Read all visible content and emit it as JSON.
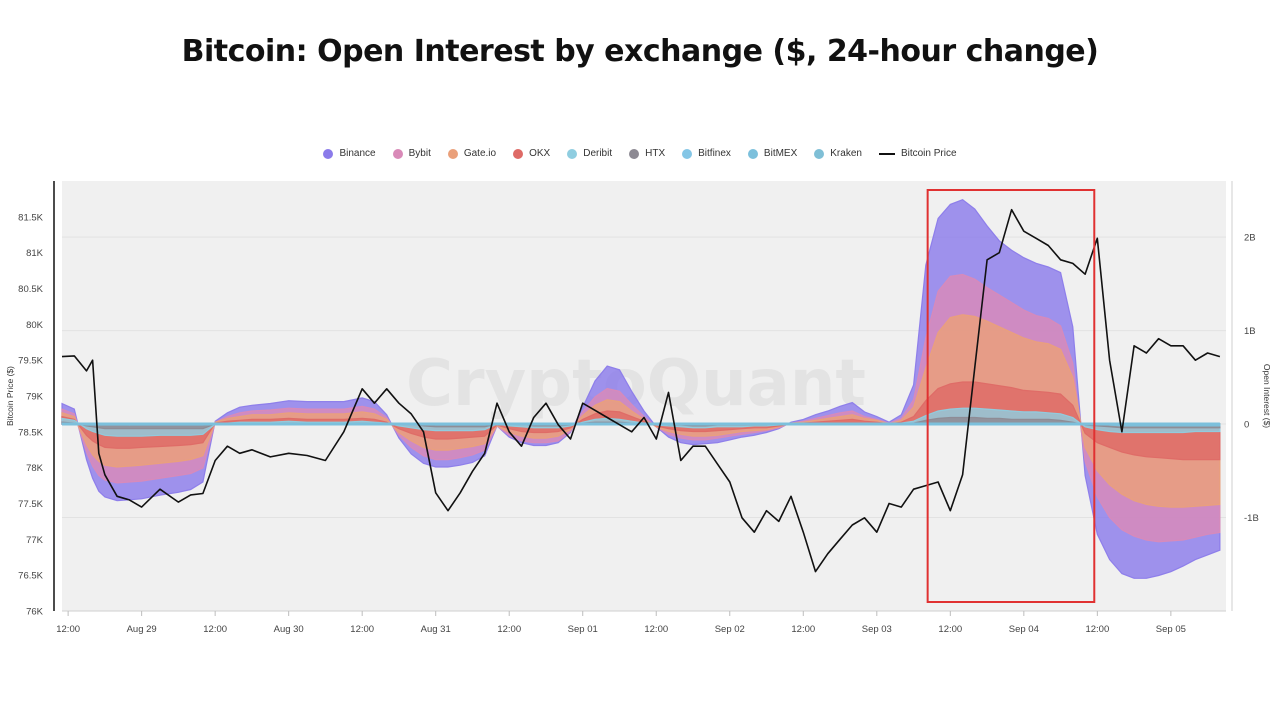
{
  "page": {
    "title": "Bitcoin: Open Interest by exchange ($, 24-hour change)",
    "watermark": "CryptoQuant"
  },
  "colors": {
    "Binance": "#8b7bea",
    "Bybit": "#d98ab8",
    "Gate.io": "#eaa07a",
    "OKX": "#de6a66",
    "Deribit": "#8fcde0",
    "HTX": "#8d8a93",
    "Bitfinex": "#84c6e6",
    "BitMEX": "#7cc0dc",
    "Kraken": "#7fbfd6",
    "Bitcoin Price": "#111111",
    "highlight": "#e03131",
    "plot_bg": "#f0f0f0"
  },
  "chart_data": {
    "type": "area",
    "title": "Bitcoin: Open Interest by exchange ($, 24-hour change)",
    "legend_position": "top",
    "grid": true,
    "x_axis": {
      "ticks": [
        "12:00",
        "Aug 29",
        "12:00",
        "Aug 30",
        "12:00",
        "Aug 31",
        "12:00",
        "Sep 01",
        "12:00",
        "Sep 02",
        "12:00",
        "Sep 03",
        "12:00",
        "Sep 04",
        "12:00",
        "Sep 05"
      ],
      "tick_hours": [
        0,
        12,
        24,
        36,
        48,
        60,
        72,
        84,
        96,
        108,
        120,
        132,
        144,
        156,
        168,
        180
      ],
      "range_hours": [
        -1,
        189
      ]
    },
    "y_left": {
      "label": "Bitcoin Price ($)",
      "ticks": [
        "81.5K",
        "81K",
        "80.5K",
        "80K",
        "79.5K",
        "79K",
        "78.5K",
        "78K",
        "77.5K",
        "77K",
        "76.5K",
        "76K"
      ],
      "tick_values": [
        81500,
        81000,
        80500,
        80000,
        79500,
        79000,
        78500,
        78000,
        77500,
        77000,
        76500,
        76000
      ],
      "range": [
        76000,
        82000
      ]
    },
    "y_right": {
      "label": "Open Interest ($)",
      "ticks": [
        "2B",
        "1B",
        "0",
        "-1B"
      ],
      "tick_values": [
        2000000000,
        1000000000,
        0,
        -1000000000
      ],
      "range": [
        -2000000000,
        2600000000
      ]
    },
    "x_hours": [
      -1,
      1,
      3,
      4,
      5,
      6,
      8,
      10,
      12,
      15,
      18,
      20,
      22,
      24,
      26,
      28,
      30,
      33,
      36,
      39,
      42,
      45,
      48,
      50,
      52,
      54,
      56,
      58,
      60,
      62,
      64,
      66,
      68,
      70,
      72,
      74,
      76,
      78,
      80,
      82,
      84,
      86,
      88,
      90,
      92,
      94,
      96,
      98,
      100,
      102,
      104,
      106,
      108,
      110,
      112,
      114,
      116,
      118,
      120,
      122,
      124,
      126,
      128,
      130,
      132,
      134,
      136,
      138,
      140,
      142,
      144,
      146,
      148,
      150,
      152,
      154,
      156,
      158,
      160,
      162,
      164,
      166,
      168,
      170,
      172,
      174,
      176,
      178,
      180,
      182,
      184,
      186,
      188
    ],
    "series": [
      {
        "name": "Kraken",
        "axis": "right",
        "values": [
          0.0,
          0.01,
          0.0,
          0.0,
          0.0,
          0.0,
          0.0,
          -0.01,
          0.0,
          0.0,
          0.0,
          0.0,
          0.0,
          0.0,
          0.0,
          0.0,
          0.0,
          0.0,
          0.0,
          0.0,
          0.0,
          0.0,
          0.0,
          0.0,
          0.0,
          0.0,
          0.0,
          0.0,
          0.0,
          0.0,
          0.0,
          0.0,
          0.0,
          0.0,
          0.0,
          0.0,
          0.0,
          0.0,
          0.0,
          0.0,
          0.0,
          0.0,
          0.0,
          0.0,
          0.0,
          0.0,
          0.0,
          0.0,
          0.0,
          0.0,
          0.0,
          0.0,
          0.0,
          0.0,
          0.0,
          0.0,
          0.0,
          0.0,
          0.0,
          0.0,
          0.0,
          0.0,
          0.0,
          0.0,
          0.0,
          0.0,
          0.0,
          0.0,
          0.0,
          0.0,
          0.0,
          0.0,
          0.0,
          0.0,
          0.0,
          0.0,
          0.0,
          0.0,
          0.0,
          0.0,
          0.0,
          0.0,
          0.0,
          -0.01,
          -0.01,
          -0.01,
          -0.01,
          -0.01,
          -0.01,
          -0.01,
          -0.01,
          -0.01,
          -0.01
        ]
      },
      {
        "name": "BitMEX",
        "axis": "right",
        "values": [
          0.01,
          0.0,
          -0.01,
          -0.01,
          -0.01,
          -0.01,
          -0.01,
          -0.01,
          -0.01,
          -0.01,
          -0.01,
          -0.01,
          -0.01,
          0.0,
          0.0,
          0.0,
          0.0,
          0.0,
          0.0,
          0.0,
          0.0,
          0.0,
          0.0,
          0.0,
          0.0,
          0.0,
          0.0,
          0.0,
          -0.01,
          -0.01,
          -0.01,
          -0.01,
          -0.01,
          0.0,
          0.0,
          0.0,
          0.0,
          0.0,
          0.0,
          0.0,
          0.0,
          0.0,
          0.0,
          0.0,
          0.0,
          0.0,
          0.0,
          0.0,
          0.0,
          0.0,
          0.0,
          0.0,
          0.0,
          0.0,
          0.0,
          0.0,
          0.0,
          0.0,
          0.0,
          0.0,
          0.0,
          0.0,
          0.0,
          0.0,
          0.0,
          0.0,
          0.0,
          0.01,
          0.01,
          0.01,
          0.01,
          0.01,
          0.01,
          0.01,
          0.01,
          0.01,
          0.01,
          0.01,
          0.01,
          0.01,
          0.01,
          0.01,
          0.0,
          -0.01,
          -0.02,
          -0.02,
          -0.02,
          -0.02,
          -0.02,
          -0.02,
          -0.02,
          -0.02,
          -0.02
        ]
      },
      {
        "name": "Bitfinex",
        "axis": "right",
        "values": [
          0.0,
          0.0,
          0.0,
          0.0,
          0.0,
          0.0,
          0.0,
          0.0,
          0.0,
          0.0,
          0.0,
          0.0,
          0.0,
          0.0,
          0.0,
          0.0,
          0.0,
          0.0,
          0.0,
          0.0,
          0.0,
          0.0,
          0.0,
          0.0,
          0.0,
          0.0,
          0.0,
          0.0,
          0.0,
          0.0,
          0.0,
          0.0,
          0.0,
          0.0,
          0.0,
          0.0,
          0.0,
          0.0,
          0.0,
          0.0,
          0.0,
          0.0,
          0.0,
          0.0,
          0.0,
          0.0,
          0.0,
          0.0,
          0.0,
          0.0,
          0.0,
          0.0,
          0.0,
          0.0,
          0.0,
          0.0,
          0.0,
          0.0,
          0.0,
          0.0,
          0.0,
          0.0,
          0.0,
          0.0,
          0.0,
          0.0,
          0.0,
          0.0,
          0.0,
          0.0,
          0.0,
          0.0,
          0.0,
          0.0,
          0.0,
          0.0,
          0.0,
          0.0,
          0.0,
          0.0,
          0.0,
          0.0,
          0.0,
          0.0,
          0.0,
          0.0,
          0.0,
          0.0,
          0.0,
          0.0,
          0.0,
          0.0,
          0.0
        ]
      },
      {
        "name": "HTX",
        "axis": "right",
        "values": [
          0.02,
          0.01,
          -0.02,
          -0.03,
          -0.04,
          -0.05,
          -0.05,
          -0.05,
          -0.05,
          -0.05,
          -0.05,
          -0.05,
          -0.05,
          0.0,
          0.0,
          0.01,
          0.01,
          0.01,
          0.01,
          0.01,
          0.01,
          0.01,
          0.01,
          0.01,
          0.0,
          0.0,
          0.0,
          -0.02,
          -0.03,
          -0.03,
          -0.03,
          -0.03,
          -0.03,
          0.0,
          0.0,
          0.0,
          -0.02,
          -0.02,
          -0.02,
          -0.01,
          0.01,
          0.02,
          0.02,
          0.02,
          0.01,
          0.0,
          0.0,
          -0.01,
          -0.01,
          -0.02,
          -0.02,
          -0.01,
          -0.01,
          -0.01,
          -0.01,
          -0.01,
          0.0,
          0.0,
          0.0,
          0.0,
          0.0,
          0.0,
          0.0,
          0.0,
          0.0,
          0.0,
          0.0,
          0.01,
          0.04,
          0.06,
          0.07,
          0.07,
          0.07,
          0.06,
          0.06,
          0.05,
          0.05,
          0.05,
          0.05,
          0.04,
          0.02,
          -0.01,
          -0.02,
          -0.03,
          -0.04,
          -0.04,
          -0.04,
          -0.04,
          -0.04,
          -0.04,
          -0.04,
          -0.04,
          -0.04
        ]
      },
      {
        "name": "Deribit",
        "axis": "right",
        "values": [
          0.06,
          0.04,
          -0.05,
          -0.08,
          -0.1,
          -0.12,
          -0.13,
          -0.13,
          -0.13,
          -0.12,
          -0.12,
          -0.12,
          -0.11,
          0.0,
          0.01,
          0.02,
          0.02,
          0.02,
          0.03,
          0.02,
          0.02,
          0.02,
          0.03,
          0.02,
          0.01,
          -0.02,
          -0.04,
          -0.06,
          -0.07,
          -0.07,
          -0.07,
          -0.07,
          -0.06,
          0.0,
          -0.02,
          -0.03,
          -0.04,
          -0.04,
          -0.04,
          -0.02,
          0.02,
          0.05,
          0.06,
          0.05,
          0.03,
          0.01,
          -0.01,
          -0.02,
          -0.03,
          -0.04,
          -0.04,
          -0.03,
          -0.03,
          -0.03,
          -0.02,
          -0.02,
          -0.01,
          0.0,
          0.0,
          0.0,
          0.0,
          0.0,
          0.01,
          0.01,
          0.01,
          0.0,
          0.01,
          0.03,
          0.09,
          0.14,
          0.16,
          0.17,
          0.17,
          0.16,
          0.15,
          0.14,
          0.13,
          0.13,
          0.12,
          0.11,
          0.07,
          -0.03,
          -0.06,
          -0.08,
          -0.09,
          -0.09,
          -0.09,
          -0.09,
          -0.09,
          -0.09,
          -0.08,
          -0.08,
          -0.08
        ]
      },
      {
        "name": "OKX",
        "axis": "right",
        "values": [
          0.08,
          0.05,
          -0.12,
          -0.18,
          -0.22,
          -0.25,
          -0.26,
          -0.26,
          -0.25,
          -0.24,
          -0.23,
          -0.22,
          -0.2,
          0.01,
          0.03,
          0.04,
          0.05,
          0.05,
          0.06,
          0.05,
          0.05,
          0.05,
          0.06,
          0.05,
          0.02,
          -0.05,
          -0.1,
          -0.14,
          -0.16,
          -0.16,
          -0.15,
          -0.14,
          -0.13,
          -0.01,
          -0.05,
          -0.08,
          -0.09,
          -0.09,
          -0.08,
          -0.04,
          0.05,
          0.11,
          0.14,
          0.13,
          0.08,
          0.03,
          -0.02,
          -0.05,
          -0.07,
          -0.08,
          -0.08,
          -0.07,
          -0.06,
          -0.05,
          -0.04,
          -0.04,
          -0.02,
          0.0,
          0.01,
          0.02,
          0.03,
          0.04,
          0.05,
          0.03,
          0.02,
          0.0,
          0.02,
          0.08,
          0.25,
          0.38,
          0.43,
          0.45,
          0.45,
          0.43,
          0.41,
          0.39,
          0.36,
          0.35,
          0.34,
          0.32,
          0.2,
          -0.1,
          -0.2,
          -0.25,
          -0.3,
          -0.33,
          -0.35,
          -0.36,
          -0.37,
          -0.38,
          -0.38,
          -0.38,
          -0.38
        ]
      },
      {
        "name": "Gate.io",
        "axis": "right",
        "values": [
          0.12,
          0.08,
          -0.22,
          -0.33,
          -0.4,
          -0.44,
          -0.46,
          -0.45,
          -0.44,
          -0.42,
          -0.4,
          -0.38,
          -0.34,
          0.02,
          0.06,
          0.08,
          0.1,
          0.1,
          0.12,
          0.11,
          0.11,
          0.11,
          0.13,
          0.11,
          0.05,
          -0.09,
          -0.18,
          -0.25,
          -0.28,
          -0.28,
          -0.26,
          -0.24,
          -0.21,
          -0.02,
          -0.09,
          -0.13,
          -0.15,
          -0.15,
          -0.13,
          -0.06,
          0.09,
          0.2,
          0.26,
          0.24,
          0.14,
          0.05,
          -0.03,
          -0.08,
          -0.11,
          -0.13,
          -0.13,
          -0.12,
          -0.1,
          -0.08,
          -0.07,
          -0.06,
          -0.03,
          0.01,
          0.02,
          0.04,
          0.06,
          0.08,
          0.1,
          0.06,
          0.04,
          0.0,
          0.04,
          0.18,
          0.6,
          0.98,
          1.14,
          1.17,
          1.15,
          1.1,
          1.04,
          0.98,
          0.92,
          0.88,
          0.86,
          0.8,
          0.5,
          -0.25,
          -0.5,
          -0.65,
          -0.75,
          -0.82,
          -0.86,
          -0.88,
          -0.89,
          -0.89,
          -0.88,
          -0.87,
          -0.86
        ]
      },
      {
        "name": "Bybit",
        "axis": "right",
        "values": [
          0.16,
          0.11,
          -0.3,
          -0.45,
          -0.55,
          -0.6,
          -0.63,
          -0.62,
          -0.61,
          -0.58,
          -0.55,
          -0.53,
          -0.47,
          0.02,
          0.08,
          0.12,
          0.14,
          0.15,
          0.17,
          0.16,
          0.16,
          0.16,
          0.19,
          0.16,
          0.07,
          -0.12,
          -0.25,
          -0.34,
          -0.38,
          -0.38,
          -0.36,
          -0.33,
          -0.28,
          -0.02,
          -0.12,
          -0.18,
          -0.2,
          -0.2,
          -0.18,
          -0.08,
          0.13,
          0.29,
          0.38,
          0.35,
          0.21,
          0.08,
          -0.03,
          -0.11,
          -0.15,
          -0.17,
          -0.17,
          -0.15,
          -0.13,
          -0.11,
          -0.09,
          -0.07,
          -0.04,
          0.01,
          0.03,
          0.06,
          0.09,
          0.12,
          0.14,
          0.08,
          0.05,
          0.01,
          0.06,
          0.26,
          0.92,
          1.42,
          1.58,
          1.6,
          1.55,
          1.46,
          1.38,
          1.3,
          1.22,
          1.16,
          1.13,
          1.05,
          0.65,
          -0.4,
          -0.78,
          -1.0,
          -1.13,
          -1.2,
          -1.24,
          -1.26,
          -1.25,
          -1.24,
          -1.21,
          -1.18,
          -1.16
        ]
      },
      {
        "name": "Binance",
        "axis": "right",
        "values": [
          0.22,
          0.16,
          -0.38,
          -0.58,
          -0.72,
          -0.78,
          -0.82,
          -0.81,
          -0.8,
          -0.76,
          -0.73,
          -0.7,
          -0.62,
          0.03,
          0.12,
          0.18,
          0.2,
          0.22,
          0.25,
          0.24,
          0.24,
          0.24,
          0.28,
          0.24,
          0.1,
          -0.15,
          -0.32,
          -0.42,
          -0.46,
          -0.46,
          -0.44,
          -0.41,
          -0.34,
          -0.02,
          -0.14,
          -0.2,
          -0.23,
          -0.23,
          -0.2,
          -0.09,
          0.18,
          0.46,
          0.62,
          0.58,
          0.35,
          0.14,
          -0.03,
          -0.14,
          -0.2,
          -0.22,
          -0.21,
          -0.2,
          -0.17,
          -0.14,
          -0.12,
          -0.09,
          -0.05,
          0.02,
          0.05,
          0.1,
          0.14,
          0.19,
          0.23,
          0.13,
          0.08,
          0.02,
          0.1,
          0.42,
          1.7,
          2.2,
          2.35,
          2.4,
          2.3,
          2.12,
          1.96,
          1.86,
          1.78,
          1.72,
          1.68,
          1.62,
          1.04,
          -0.55,
          -1.18,
          -1.45,
          -1.6,
          -1.65,
          -1.65,
          -1.62,
          -1.58,
          -1.52,
          -1.45,
          -1.4,
          -1.35
        ]
      },
      {
        "name": "Bitcoin Price",
        "axis": "left",
        "values": [
          79550,
          79560,
          79350,
          79500,
          78200,
          77900,
          77600,
          77550,
          77450,
          77700,
          77520,
          77620,
          77640,
          78100,
          78300,
          78200,
          78250,
          78150,
          78200,
          78170,
          78100,
          78500,
          79100,
          78900,
          79100,
          78900,
          78750,
          78500,
          77650,
          77400,
          77650,
          77950,
          78200,
          78900,
          78500,
          78300,
          78700,
          78900,
          78600,
          78400,
          78900,
          78800,
          78700,
          78600,
          78500,
          78700,
          78400,
          79050,
          78100,
          78300,
          78300,
          78050,
          77800,
          77300,
          77100,
          77400,
          77250,
          77600,
          77100,
          76550,
          76800,
          77000,
          77200,
          77300,
          77100,
          77500,
          77450,
          77700,
          77750,
          77800,
          77400,
          77900,
          79400,
          80900,
          81000,
          81600,
          81300,
          81200,
          81100,
          80900,
          80850,
          80700,
          81200,
          79500,
          78500,
          79700,
          79600,
          79800,
          79700,
          79700,
          79500,
          79600,
          79550
        ]
      }
    ],
    "annotations": [
      {
        "type": "highlight-rect",
        "x_hours_range": [
          140.3,
          167.5
        ]
      }
    ]
  }
}
